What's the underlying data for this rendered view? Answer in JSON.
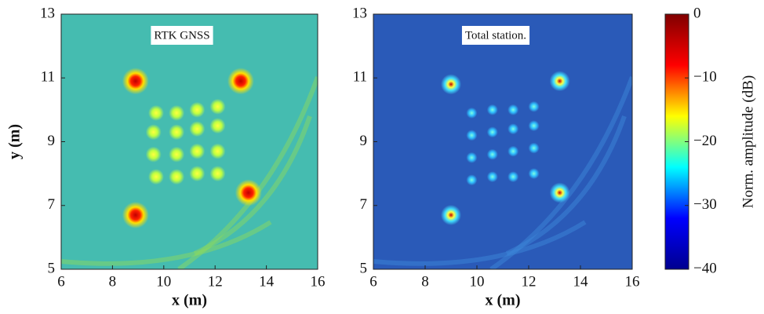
{
  "chart_data": [
    {
      "type": "heatmap",
      "annotation": "RTK GNSS",
      "xlabel": "x (m)",
      "ylabel": "y (m)",
      "xlim": [
        6,
        16
      ],
      "ylim": [
        5,
        13
      ],
      "xticks": [
        6,
        8,
        10,
        12,
        14,
        16
      ],
      "yticks": [
        5,
        7,
        9,
        11,
        13
      ],
      "x": [
        8.9,
        13.0,
        13.3,
        8.9,
        9.7,
        10.5,
        11.3,
        12.1,
        9.6,
        10.5,
        11.3,
        12.1,
        9.6,
        10.5,
        11.3,
        12.1,
        9.7,
        10.5,
        11.3,
        12.1
      ],
      "y": [
        10.9,
        10.9,
        7.4,
        6.7,
        9.9,
        9.9,
        10.0,
        10.1,
        9.3,
        9.3,
        9.4,
        9.5,
        8.6,
        8.6,
        8.7,
        8.7,
        7.9,
        7.9,
        8.0,
        8.0
      ]
    },
    {
      "type": "heatmap",
      "annotation": "Total station.",
      "xlabel": "x (m)",
      "xlim": [
        6,
        16
      ],
      "ylim": [
        5,
        13
      ],
      "xticks": [
        6,
        8,
        10,
        12,
        14,
        16
      ],
      "yticks": [
        5,
        7,
        9,
        11,
        13
      ],
      "x": [
        9.0,
        13.2,
        13.2,
        9.0,
        9.8,
        10.6,
        11.4,
        12.2,
        9.8,
        10.6,
        11.4,
        12.2,
        9.8,
        10.6,
        11.4,
        12.2,
        9.8,
        10.6,
        11.4,
        12.2
      ],
      "y": [
        10.8,
        10.9,
        7.4,
        6.7,
        9.9,
        10.0,
        10.0,
        10.1,
        9.2,
        9.3,
        9.4,
        9.5,
        8.5,
        8.6,
        8.7,
        8.8,
        7.8,
        7.9,
        7.9,
        8.0
      ]
    },
    {
      "type": "colorbar",
      "label": "Norm. amplitude (dB)",
      "ylim": [
        -40,
        0
      ],
      "yticks": [
        0,
        {
          "value": -10,
          "label": "−10"
        },
        {
          "value": -20,
          "label": "−20"
        },
        {
          "value": -30,
          "label": "−30"
        },
        {
          "value": -40,
          "label": "−40"
        }
      ],
      "colormap": [
        "#00008f",
        "#0000ff",
        "#00ffff",
        "#ffff00",
        "#ff0000",
        "#800000"
      ]
    }
  ]
}
